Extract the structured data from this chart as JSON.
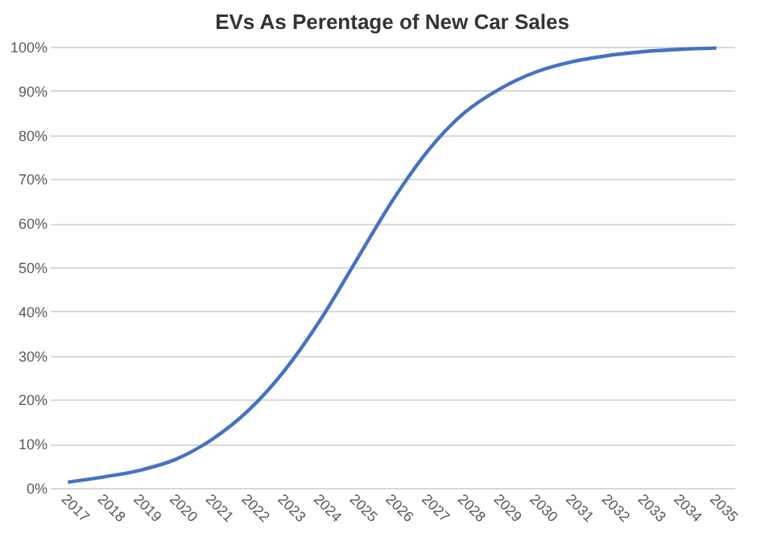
{
  "chart_data": {
    "type": "line",
    "title": "EVs As Perentage of New Car Sales",
    "categories": [
      "2017",
      "2018",
      "2019",
      "2020",
      "2021",
      "2022",
      "2023",
      "2024",
      "2025",
      "2026",
      "2027",
      "2028",
      "2029",
      "2030",
      "2031",
      "2032",
      "2033",
      "2034",
      "2035"
    ],
    "series": [
      {
        "color": "#4472c4",
        "values": [
          1.3,
          2.5,
          4,
          6.5,
          11,
          17.5,
          26.5,
          38,
          51.5,
          65,
          76.5,
          85,
          90.5,
          94.3,
          96.6,
          98,
          98.9,
          99.4,
          99.7
        ]
      }
    ],
    "ylim": [
      0,
      100
    ],
    "yticks": [
      {
        "value": 0,
        "label": "0%"
      },
      {
        "value": 10,
        "label": "10%"
      },
      {
        "value": 20,
        "label": "20%"
      },
      {
        "value": 30,
        "label": "30%"
      },
      {
        "value": 40,
        "label": "40%"
      },
      {
        "value": 50,
        "label": "50%"
      },
      {
        "value": 60,
        "label": "60%"
      },
      {
        "value": 70,
        "label": "70%"
      },
      {
        "value": 80,
        "label": "80%"
      },
      {
        "value": 90,
        "label": "90%"
      },
      {
        "value": 100,
        "label": "100%"
      }
    ],
    "grid": "y",
    "marker": "none",
    "line_style": "solid",
    "legend": false
  }
}
